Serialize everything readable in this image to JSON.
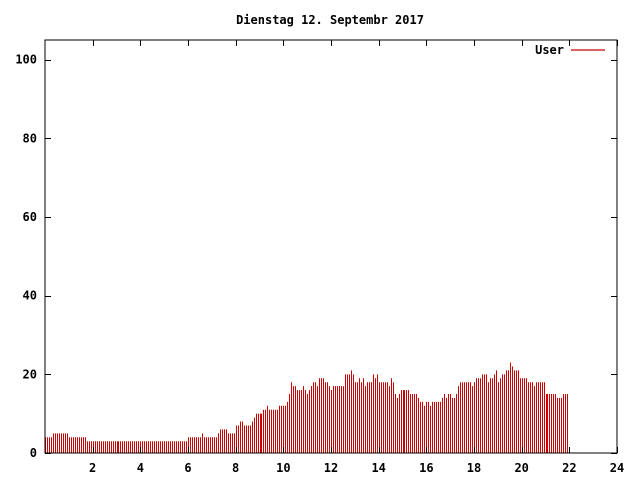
{
  "chart_data": {
    "type": "bar",
    "title": "Dienstag 12. Septembr 2017",
    "xlabel": "",
    "ylabel": "",
    "xlim": [
      0,
      24
    ],
    "ylim": [
      0,
      105
    ],
    "xticks": [
      2,
      4,
      6,
      8,
      10,
      12,
      14,
      16,
      18,
      20,
      22,
      24
    ],
    "yticks": [
      0,
      20,
      40,
      60,
      80,
      100
    ],
    "grid": false,
    "legend_position": "top-right",
    "series": [
      {
        "name": "User",
        "color": "#cc0000",
        "points_per_hour": 12,
        "values": [
          4,
          4,
          4,
          4,
          5,
          5,
          5,
          5,
          5,
          5,
          5,
          5,
          4,
          4,
          4,
          4,
          4,
          4,
          4,
          4,
          4,
          3,
          3,
          3,
          3,
          3,
          3,
          3,
          3,
          3,
          3,
          3,
          3,
          3,
          3,
          3,
          3,
          3,
          3,
          3,
          3,
          3,
          3,
          3,
          3,
          3,
          3,
          3,
          3,
          3,
          3,
          3,
          3,
          3,
          3,
          3,
          3,
          3,
          3,
          3,
          3,
          3,
          3,
          3,
          3,
          3,
          3,
          3,
          3,
          3,
          3,
          3,
          4,
          4,
          4,
          4,
          4,
          4,
          4,
          5,
          4,
          4,
          4,
          4,
          4,
          4,
          4,
          5,
          6,
          6,
          6,
          6,
          5,
          5,
          5,
          5,
          7,
          7,
          8,
          8,
          7,
          7,
          7,
          7,
          8,
          9,
          10,
          10,
          10,
          10,
          11,
          11,
          12,
          11,
          11,
          11,
          11,
          11,
          12,
          12,
          12,
          12,
          13,
          15,
          18,
          17,
          17,
          16,
          16,
          16,
          17,
          16,
          15,
          16,
          17,
          18,
          18,
          17,
          19,
          19,
          19,
          18,
          18,
          17,
          16,
          17,
          17,
          17,
          17,
          17,
          17,
          20,
          20,
          20,
          21,
          20,
          18,
          18,
          19,
          18,
          19,
          17,
          18,
          18,
          18,
          20,
          19,
          20,
          18,
          18,
          18,
          18,
          18,
          17,
          19,
          18,
          15,
          14,
          15,
          16,
          16,
          16,
          16,
          16,
          15,
          15,
          15,
          15,
          14,
          13,
          13,
          12,
          13,
          13,
          12,
          13,
          13,
          13,
          13,
          13,
          14,
          15,
          14,
          15,
          15,
          14,
          14,
          15,
          17,
          18,
          18,
          18,
          18,
          18,
          18,
          17,
          18,
          19,
          19,
          19,
          20,
          20,
          20,
          18,
          19,
          19,
          20,
          21,
          18,
          19,
          20,
          20,
          21,
          21,
          23,
          22,
          21,
          21,
          21,
          19,
          19,
          19,
          19,
          18,
          18,
          18,
          17,
          18,
          18,
          18,
          18,
          18,
          15,
          15,
          15,
          15,
          15,
          15,
          14,
          14,
          14,
          15,
          15,
          15
        ]
      }
    ]
  }
}
